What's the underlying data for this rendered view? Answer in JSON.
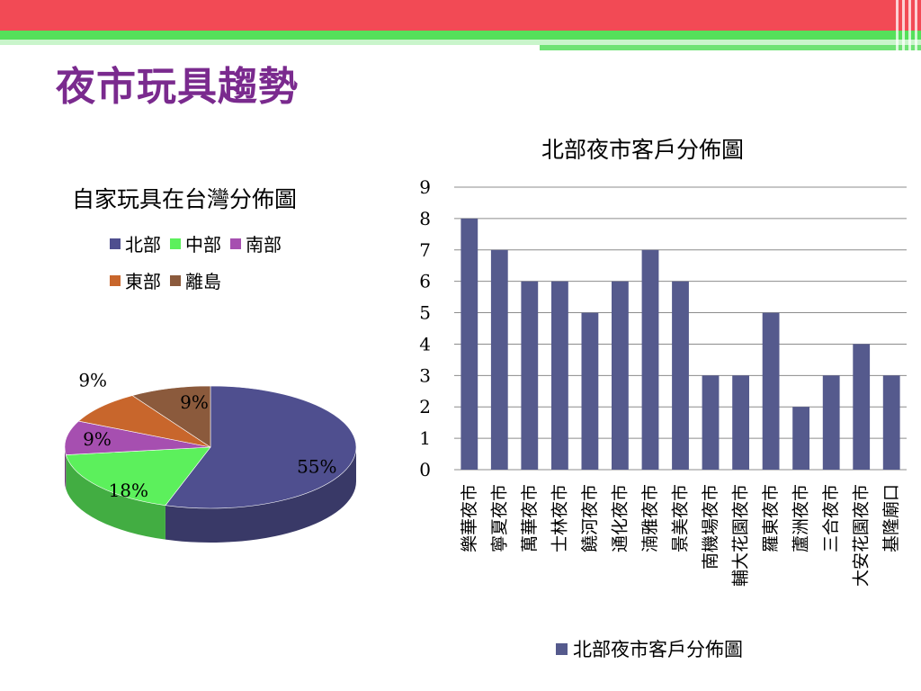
{
  "slide": {
    "title": "夜市玩具趨勢",
    "colors": {
      "header_red": "#f24a55",
      "header_green": "#55e05a",
      "title_purple": "#7a2a8e"
    }
  },
  "chart_data": [
    {
      "type": "pie",
      "title": "自家玩具在台灣分佈圖",
      "legend_position": "top",
      "categories": [
        "北部",
        "中部",
        "南部",
        "東部",
        "離島"
      ],
      "values": [
        55,
        18,
        9,
        9,
        9
      ],
      "labels": [
        "55%",
        "18%",
        "9%",
        "9%",
        "9%"
      ],
      "colors": [
        "#4f4f8f",
        "#5cf05c",
        "#a64fb0",
        "#c8662c",
        "#8b5a3c"
      ],
      "style": "3d"
    },
    {
      "type": "bar",
      "title": "北部夜市客戶分佈圖",
      "categories": [
        "樂華夜市",
        "寧夏夜市",
        "萬華夜市",
        "士林夜市",
        "饒河夜市",
        "通化夜市",
        "湳雅夜市",
        "景美夜市",
        "南機場夜市",
        "輔大花園夜市",
        "羅東夜市",
        "蘆洲夜市",
        "三合夜市",
        "大安花園夜市",
        "基隆廟口"
      ],
      "series": [
        {
          "name": "北部夜市客戶分佈圖",
          "values": [
            8,
            7,
            6,
            6,
            5,
            6,
            7,
            6,
            3,
            3,
            5,
            2,
            3,
            4,
            3
          ],
          "color": "#555a8d"
        }
      ],
      "ylim": [
        0,
        9
      ],
      "yticks": [
        0,
        1,
        2,
        3,
        4,
        5,
        6,
        7,
        8,
        9
      ],
      "grid": true,
      "legend_position": "bottom"
    }
  ]
}
